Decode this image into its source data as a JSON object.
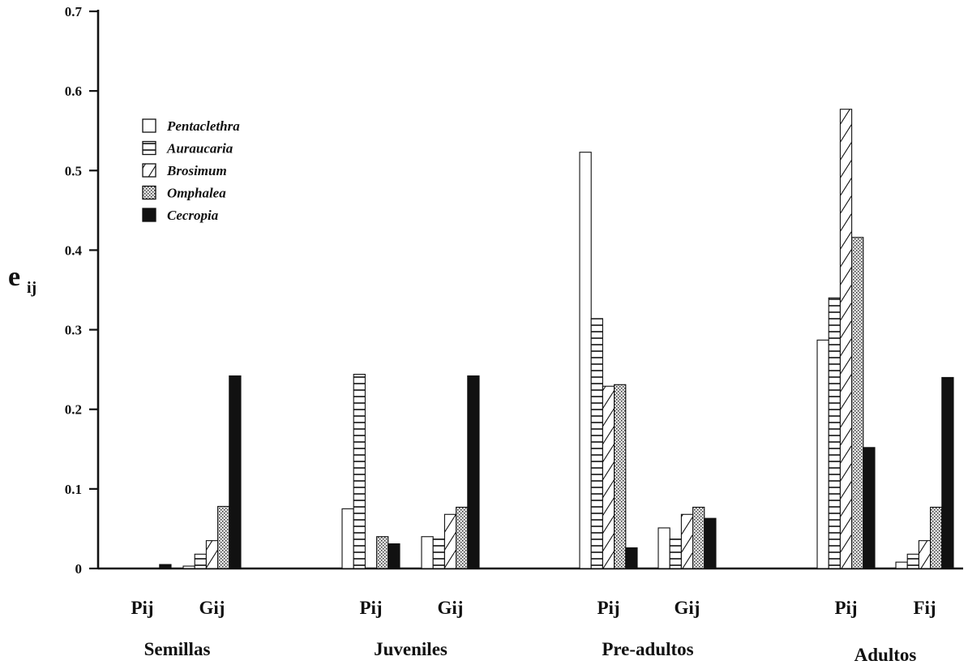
{
  "chart_data": {
    "type": "bar",
    "ylabel": "e",
    "ylabel_sub": "ij",
    "ylim": [
      0,
      0.7
    ],
    "yticks": [
      "0",
      "0.1",
      "0.2",
      "0.3",
      "0.4",
      "0.5",
      "0.6",
      "0.7"
    ],
    "grid": false,
    "legend_position": "top-left",
    "groups": [
      {
        "label": "Semillas",
        "subgroups": [
          {
            "label": "Pij",
            "values": [
              0,
              0,
              0,
              0,
              0.005
            ]
          },
          {
            "label": "Gij",
            "values": [
              0.003,
              0.018,
              0.035,
              0.078,
              0.242
            ]
          }
        ]
      },
      {
        "label": "Juveniles",
        "subgroups": [
          {
            "label": "Pij",
            "values": [
              0.075,
              0.244,
              0,
              0.04,
              0.031
            ]
          },
          {
            "label": "Gij",
            "values": [
              0.04,
              0.037,
              0.068,
              0.077,
              0.242
            ]
          }
        ]
      },
      {
        "label": "Pre-adultos",
        "subgroups": [
          {
            "label": "Pij",
            "values": [
              0.523,
              0.314,
              0.229,
              0.231,
              0.026
            ]
          },
          {
            "label": "Gij",
            "values": [
              0.051,
              0.037,
              0.068,
              0.077,
              0.063
            ]
          }
        ]
      },
      {
        "label": "Adultos",
        "subgroups": [
          {
            "label": "Pij",
            "values": [
              0.287,
              0.34,
              0.577,
              0.416,
              0.152
            ]
          },
          {
            "label": "Fij",
            "values": [
              0.008,
              0.018,
              0.035,
              0.077,
              0.24
            ]
          }
        ]
      }
    ],
    "series": [
      {
        "name": "Pentaclethra",
        "pattern": "open"
      },
      {
        "name": "Auraucaria",
        "pattern": "horizontal-lines"
      },
      {
        "name": "Brosimum",
        "pattern": "diagonal-lines"
      },
      {
        "name": "Omphalea",
        "pattern": "stipple"
      },
      {
        "name": "Cecropia",
        "pattern": "solid"
      }
    ],
    "colors": {
      "ink": "#111111",
      "background": "#ffffff"
    }
  }
}
